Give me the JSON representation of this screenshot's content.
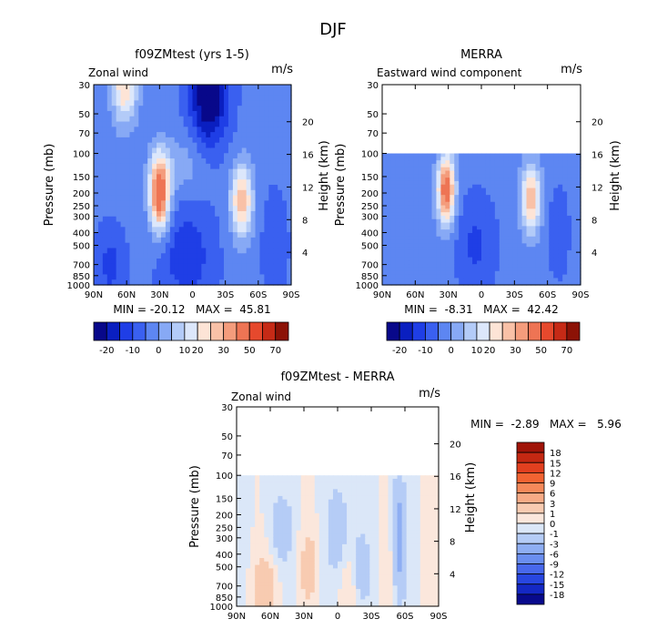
{
  "title": "DJF",
  "chart_data": [
    {
      "type": "contour",
      "title": "f09ZMtest (yrs 1-5)",
      "left_label": "Zonal wind",
      "units": "m/s",
      "ylabel": "Pressure (mb)",
      "ylabel_right": "Height (km)",
      "x_ticks": [
        "90N",
        "60N",
        "30N",
        "0",
        "30S",
        "60S",
        "90S"
      ],
      "p_ticks": [
        "30",
        "50",
        "70",
        "100",
        "150",
        "200",
        "250",
        "300",
        "400",
        "500",
        "700",
        "850",
        "1000"
      ],
      "h_ticks": [
        "4",
        "8",
        "12",
        "16",
        "20"
      ],
      "stats": "MIN = -20.12   MAX =  45.81",
      "colorbar": {
        "orientation": "horizontal",
        "labels": [
          "-20",
          "-10",
          "0",
          "10",
          "20",
          "30",
          "50",
          "70"
        ],
        "colors": [
          "#08088a",
          "#0a1fc0",
          "#1f3ee6",
          "#3a60f0",
          "#5d86f2",
          "#87a9f5",
          "#b3cbf8",
          "#dce7fb",
          "#fde4d6",
          "#f9c1a7",
          "#f49c7c",
          "#ee7454",
          "#e6492d",
          "#c62a16",
          "#8c1206"
        ]
      }
    },
    {
      "type": "contour",
      "title": "MERRA",
      "left_label": "Eastward wind component",
      "units": "m/s",
      "ylabel": "Pressure (mb)",
      "ylabel_right": "Height (km)",
      "x_ticks": [
        "90N",
        "60N",
        "30N",
        "0",
        "30S",
        "60S",
        "90S"
      ],
      "p_ticks": [
        "30",
        "50",
        "70",
        "100",
        "150",
        "200",
        "250",
        "300",
        "400",
        "500",
        "700",
        "850",
        "1000"
      ],
      "h_ticks": [
        "4",
        "8",
        "12",
        "16",
        "20"
      ],
      "stats": "MIN =  -8.31   MAX =  42.42",
      "colorbar": {
        "orientation": "horizontal",
        "labels": [
          "-20",
          "-10",
          "0",
          "10",
          "20",
          "30",
          "50",
          "70"
        ],
        "colors": [
          "#08088a",
          "#0a1fc0",
          "#1f3ee6",
          "#3a60f0",
          "#5d86f2",
          "#87a9f5",
          "#b3cbf8",
          "#dce7fb",
          "#fde4d6",
          "#f9c1a7",
          "#f49c7c",
          "#ee7454",
          "#e6492d",
          "#c62a16",
          "#8c1206"
        ]
      }
    },
    {
      "type": "contour",
      "title": "f09ZMtest - MERRA",
      "left_label": "Zonal wind",
      "units": "m/s",
      "ylabel": "Pressure (mb)",
      "ylabel_right": "Height (km)",
      "x_ticks": [
        "90N",
        "60N",
        "30N",
        "0",
        "30S",
        "60S",
        "90S"
      ],
      "p_ticks": [
        "30",
        "50",
        "70",
        "100",
        "150",
        "200",
        "250",
        "300",
        "400",
        "500",
        "700",
        "850",
        "1000"
      ],
      "h_ticks": [
        "4",
        "8",
        "12",
        "16",
        "20"
      ],
      "stats": "MIN =  -2.89   MAX =   5.96",
      "colorbar": {
        "orientation": "vertical",
        "labels": [
          "18",
          "15",
          "12",
          "9",
          "6",
          "3",
          "1",
          "0",
          "-1",
          "-3",
          "-6",
          "-9",
          "-12",
          "-15",
          "-18"
        ],
        "colors": [
          "#a01408",
          "#c42812",
          "#e2401f",
          "#f26332",
          "#f5895a",
          "#f7ab86",
          "#f8cbb1",
          "#fbe7dc",
          "#dbe7f8",
          "#b5ccf6",
          "#8eaef3",
          "#6a8ef0",
          "#4868ec",
          "#2846e0",
          "#1428c4",
          "#080a8c"
        ]
      }
    }
  ]
}
